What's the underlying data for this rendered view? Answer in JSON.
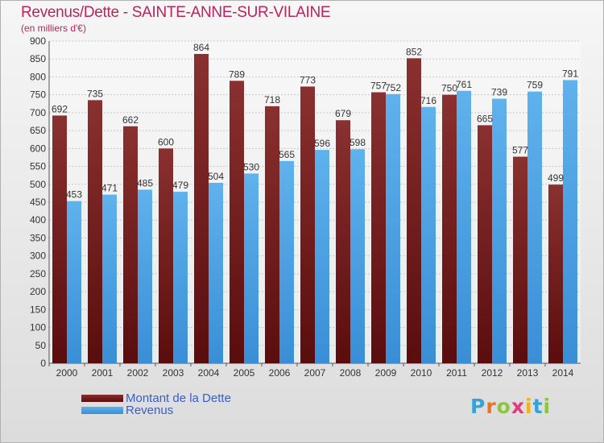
{
  "title": "Revenus/Dette - SAINTE-ANNE-SUR-VILAINE",
  "subtitle": "(en milliers d'€)",
  "legend": {
    "debt_label": "Montant de la Dette",
    "revenue_label": "Revenus"
  },
  "logo": {
    "text": "Proxiti",
    "letter_colors": [
      "#3aa0d8",
      "#e8742a",
      "#8cc63f",
      "#e23b7b",
      "#f2b213",
      "#3aa0d8",
      "#8cc63f"
    ]
  },
  "colors": {
    "debt_top": "#8a3030",
    "debt_bottom": "#5a0d0d",
    "revenue_top": "#5fb2ec",
    "revenue_bottom": "#3a8ed6",
    "title": "#b8245c",
    "legend_text": "#3a5ec8"
  },
  "chart_data": {
    "type": "bar",
    "categories": [
      "2000",
      "2001",
      "2002",
      "2003",
      "2004",
      "2005",
      "2006",
      "2007",
      "2008",
      "2009",
      "2010",
      "2011",
      "2012",
      "2013",
      "2014"
    ],
    "series": [
      {
        "name": "Montant de la Dette",
        "values": [
          692,
          735,
          662,
          600,
          864,
          789,
          718,
          773,
          679,
          757,
          852,
          750,
          665,
          577,
          499
        ]
      },
      {
        "name": "Revenus",
        "values": [
          453,
          471,
          485,
          479,
          504,
          530,
          565,
          596,
          598,
          752,
          716,
          761,
          739,
          759,
          791
        ]
      }
    ],
    "ylim": [
      0,
      900
    ],
    "yticks": [
      0,
      50,
      100,
      150,
      200,
      250,
      300,
      350,
      400,
      450,
      500,
      550,
      600,
      650,
      700,
      750,
      800,
      850,
      900
    ],
    "grid": true,
    "legend_position": "bottom-left"
  }
}
